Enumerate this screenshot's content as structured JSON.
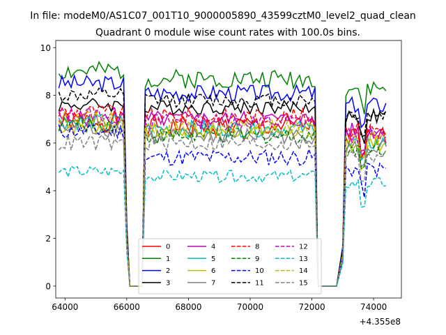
{
  "chart_data": {
    "type": "line",
    "suptitle": "In file: modeM0/AS1C07_001T10_9000005890_43599cztM0_level2_quad_clean",
    "title": "Quadrant 0 module wise count rates with 100.0s bins.",
    "xlabel": "",
    "ylabel": "",
    "x_offset_label": "+4.355e8",
    "xlim": [
      63700,
      74900
    ],
    "ylim": [
      -0.5,
      10.3
    ],
    "xticks": [
      64000,
      66000,
      68000,
      70000,
      72000,
      74000
    ],
    "xtick_labels": [
      "64000",
      "66000",
      "68000",
      "70000",
      "72000",
      "74000"
    ],
    "yticks": [
      0,
      2,
      4,
      6,
      8,
      10
    ],
    "ytick_labels": [
      "0",
      "2",
      "4",
      "6",
      "8",
      "10"
    ],
    "legend_position": "lower-center",
    "legend_columns": 4,
    "segments": [
      {
        "x_start": 63800,
        "x_end": 65900,
        "x_step": 100
      },
      {
        "x_start": 66600,
        "x_end": 72100,
        "x_step": 100
      },
      {
        "x_start": 73100,
        "x_end": 74400,
        "x_step": 100
      }
    ],
    "gaps": [
      {
        "x": [
          65900,
          66000,
          66100,
          66500,
          66600
        ],
        "y_fraction": [
          1,
          0.3,
          0,
          0,
          1
        ]
      },
      {
        "x": [
          72100,
          72200,
          72800,
          73000,
          73100
        ],
        "y_fraction": [
          1,
          0,
          0,
          0.2,
          1
        ]
      }
    ],
    "series": [
      {
        "name": "0",
        "color": "#ff0000",
        "dash": "solid",
        "level_a": 6.9,
        "level_b": 6.7,
        "level_c": 6.2,
        "jitter": 0.45
      },
      {
        "name": "1",
        "color": "#008000",
        "dash": "solid",
        "level_a": 9.0,
        "level_b": 8.7,
        "level_c": 8.3,
        "jitter": 0.4
      },
      {
        "name": "2",
        "color": "#0000ff",
        "dash": "solid",
        "level_a": 8.5,
        "level_b": 8.1,
        "level_c": 7.6,
        "jitter": 0.35
      },
      {
        "name": "3",
        "color": "#000000",
        "dash": "solid",
        "level_a": 7.6,
        "level_b": 7.5,
        "level_c": 7.1,
        "jitter": 0.3
      },
      {
        "name": "4",
        "color": "#bf00bf",
        "dash": "solid",
        "level_a": 7.0,
        "level_b": 7.0,
        "level_c": 6.5,
        "jitter": 0.35
      },
      {
        "name": "5",
        "color": "#00bfbf",
        "dash": "solid",
        "level_a": 6.9,
        "level_b": 6.6,
        "level_c": 6.0,
        "jitter": 0.35
      },
      {
        "name": "6",
        "color": "#bfbf00",
        "dash": "solid",
        "level_a": 6.7,
        "level_b": 6.5,
        "level_c": 6.0,
        "jitter": 0.35
      },
      {
        "name": "7",
        "color": "#808080",
        "dash": "solid",
        "level_a": 6.6,
        "level_b": 6.3,
        "level_c": 5.8,
        "jitter": 0.35
      },
      {
        "name": "8",
        "color": "#ff0000",
        "dash": "dashed",
        "level_a": 7.3,
        "level_b": 7.1,
        "level_c": 6.6,
        "jitter": 0.35
      },
      {
        "name": "9",
        "color": "#008000",
        "dash": "dashed",
        "level_a": 6.8,
        "level_b": 6.3,
        "level_c": 5.8,
        "jitter": 0.35
      },
      {
        "name": "10",
        "color": "#0000ff",
        "dash": "dashed",
        "level_a": 6.5,
        "level_b": 5.4,
        "level_c": 4.9,
        "jitter": 0.35
      },
      {
        "name": "11",
        "color": "#000000",
        "dash": "dashed",
        "level_a": 8.0,
        "level_b": 7.8,
        "level_c": 7.2,
        "jitter": 0.3
      },
      {
        "name": "12",
        "color": "#bf00bf",
        "dash": "dashed",
        "level_a": 7.2,
        "level_b": 6.9,
        "level_c": 6.3,
        "jitter": 0.35
      },
      {
        "name": "13",
        "color": "#00bfbf",
        "dash": "dashed",
        "level_a": 4.8,
        "level_b": 4.6,
        "level_c": 4.3,
        "jitter": 0.25
      },
      {
        "name": "14",
        "color": "#bfbf00",
        "dash": "dashed",
        "level_a": 7.0,
        "level_b": 6.6,
        "level_c": 6.1,
        "jitter": 0.35
      },
      {
        "name": "15",
        "color": "#808080",
        "dash": "dashed",
        "level_a": 6.0,
        "level_b": 6.0,
        "level_c": 5.5,
        "jitter": 0.35
      }
    ]
  }
}
